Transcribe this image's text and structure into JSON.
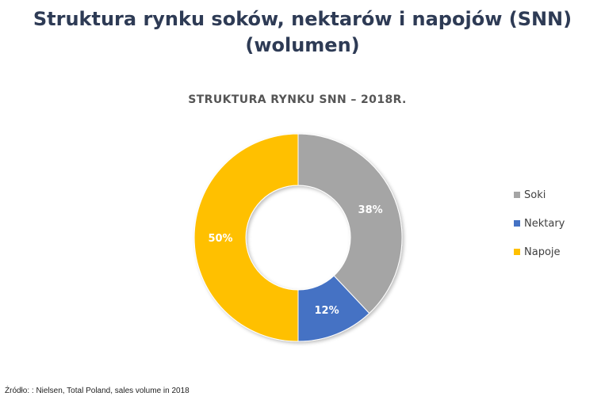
{
  "header": {
    "title_line1": "Struktura rynku soków, nektarów i napojów (SNN)",
    "title_line2": "(wolumen)"
  },
  "chart_data": {
    "type": "pie",
    "title": "STRUKTURA RYNKU SNN – 2018R.",
    "categories": [
      "Soki",
      "Nektary",
      "Napoje"
    ],
    "values": [
      38,
      12,
      50
    ],
    "labels": [
      "38%",
      "12%",
      "50%"
    ],
    "colors": [
      "#a5a5a5",
      "#4472c4",
      "#ffc000"
    ],
    "legend_position": "right",
    "style": "donut"
  },
  "footer": {
    "source": "Źródło: : Nielsen, Total Poland, sales volume in 2018"
  }
}
